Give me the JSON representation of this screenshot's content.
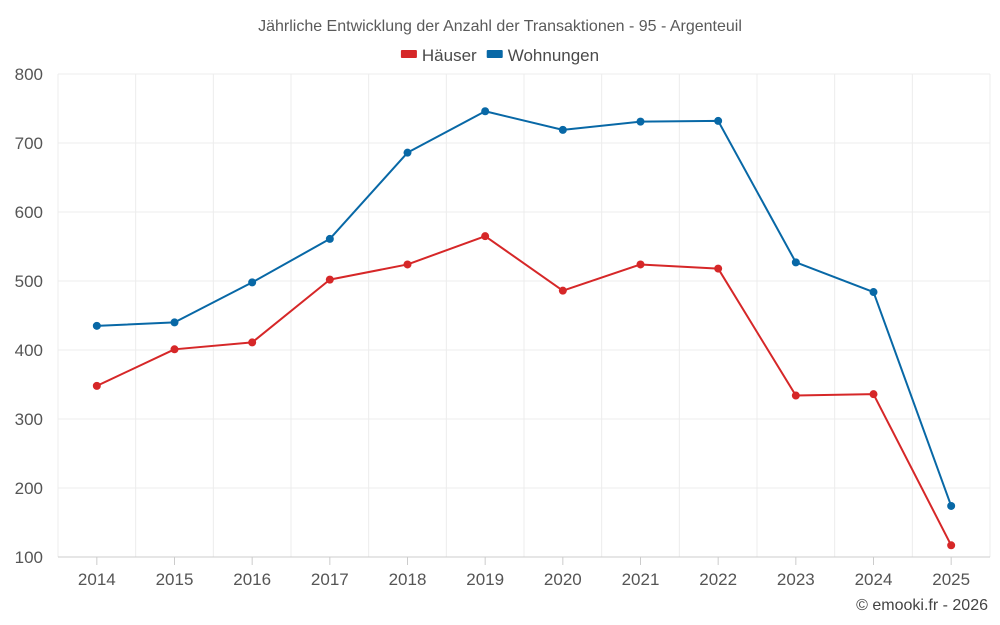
{
  "chart_data": {
    "type": "line",
    "title": "Jährliche Entwicklung der Anzahl der Transaktionen - 95 - Argenteuil",
    "xlabel": "",
    "ylabel": "",
    "categories": [
      "2014",
      "2015",
      "2016",
      "2017",
      "2018",
      "2019",
      "2020",
      "2021",
      "2022",
      "2023",
      "2024",
      "2025"
    ],
    "ylim": [
      100,
      800
    ],
    "yticks": [
      100,
      200,
      300,
      400,
      500,
      600,
      700,
      800
    ],
    "grid": true,
    "legend_position": "top-center",
    "series": [
      {
        "name": "Häuser",
        "color": "#d62728",
        "values": [
          348,
          401,
          411,
          502,
          524,
          565,
          486,
          524,
          518,
          334,
          336,
          117
        ]
      },
      {
        "name": "Wohnungen",
        "color": "#0868a6",
        "values": [
          435,
          440,
          498,
          561,
          686,
          746,
          719,
          731,
          732,
          527,
          484,
          174
        ]
      }
    ],
    "credit": "© emooki.fr - 2026"
  }
}
